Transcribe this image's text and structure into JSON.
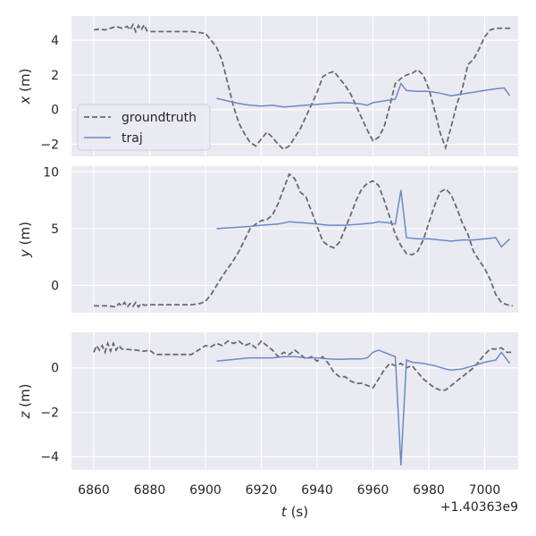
{
  "chart_data": {
    "type": "line",
    "xlabel": "t (s)",
    "x_offset_label": "+1.40363e9",
    "xlim": [
      6852,
      7012
    ],
    "xticks": [
      6860,
      6880,
      6900,
      6920,
      6940,
      6960,
      6980,
      7000
    ],
    "grid": true,
    "legend": {
      "placement": "inside-lower-left of top panel",
      "entries": [
        "groundtruth",
        "traj"
      ]
    },
    "colors": {
      "groundtruth": "#6b6b6b",
      "traj": "#6b8ac6",
      "panel_bg": "#eaeaf2",
      "grid": "#ffffff"
    },
    "panels": [
      {
        "ylabel": "x (m)",
        "ylim": [
          -2.7,
          5.4
        ],
        "yticks": [
          -2,
          0,
          2,
          4
        ],
        "series": [
          {
            "name": "groundtruth",
            "style": "dashed",
            "x": [
              6860,
              6862,
              6864,
              6866,
              6868,
              6870,
              6872,
              6873,
              6874,
              6875,
              6876,
              6877,
              6878,
              6879,
              6880,
              6885,
              6890,
              6895,
              6900,
              6902,
              6904,
              6906,
              6908,
              6910,
              6912,
              6914,
              6916,
              6918,
              6920,
              6922,
              6924,
              6926,
              6928,
              6930,
              6932,
              6934,
              6936,
              6938,
              6940,
              6942,
              6944,
              6946,
              6948,
              6950,
              6952,
              6954,
              6956,
              6958,
              6960,
              6962,
              6964,
              6966,
              6968,
              6970,
              6972,
              6974,
              6976,
              6978,
              6980,
              6982,
              6984,
              6986,
              6988,
              6990,
              6992,
              6994,
              6996,
              6998,
              7000,
              7002,
              7004,
              7006,
              7008,
              7010
            ],
            "y": [
              4.6,
              4.65,
              4.6,
              4.7,
              4.8,
              4.7,
              4.8,
              4.6,
              4.9,
              4.5,
              4.85,
              4.6,
              4.9,
              4.55,
              4.5,
              4.5,
              4.5,
              4.5,
              4.4,
              4.0,
              3.6,
              2.8,
              1.5,
              0.2,
              -0.8,
              -1.4,
              -1.9,
              -2.1,
              -1.7,
              -1.3,
              -1.6,
              -2.0,
              -2.3,
              -2.1,
              -1.6,
              -1.1,
              -0.4,
              0.3,
              1.0,
              1.9,
              2.1,
              2.2,
              1.8,
              1.4,
              0.9,
              0.2,
              -0.5,
              -1.2,
              -1.8,
              -1.6,
              -1.0,
              0.2,
              1.5,
              1.8,
              2.0,
              2.1,
              2.3,
              2.0,
              1.2,
              0.0,
              -1.3,
              -2.2,
              -1.0,
              0.3,
              1.2,
              2.6,
              2.9,
              3.5,
              4.2,
              4.6,
              4.7,
              4.7,
              4.7,
              4.7
            ]
          },
          {
            "name": "traj",
            "style": "solid",
            "x": [
              6904,
              6908,
              6912,
              6916,
              6920,
              6924,
              6926,
              6928,
              6932,
              6936,
              6940,
              6944,
              6948,
              6952,
              6956,
              6958,
              6960,
              6964,
              6968,
              6970,
              6972,
              6976,
              6980,
              6984,
              6988,
              6992,
              6996,
              7000,
              7004,
              7007,
              7009
            ],
            "y": [
              0.65,
              0.5,
              0.35,
              0.25,
              0.2,
              0.25,
              0.2,
              0.15,
              0.2,
              0.25,
              0.3,
              0.35,
              0.4,
              0.38,
              0.32,
              0.25,
              0.4,
              0.5,
              0.6,
              1.5,
              1.1,
              1.05,
              1.05,
              0.95,
              0.8,
              0.9,
              1.0,
              1.1,
              1.2,
              1.25,
              0.8
            ]
          }
        ]
      },
      {
        "ylabel": "y (m)",
        "ylim": [
          -2.4,
          10.5
        ],
        "yticks": [
          0,
          5,
          10
        ],
        "series": [
          {
            "name": "groundtruth",
            "style": "dashed",
            "x": [
              6860,
              6865,
              6868,
              6869,
              6870,
              6871,
              6872,
              6873,
              6874,
              6875,
              6876,
              6877,
              6878,
              6880,
              6885,
              6890,
              6895,
              6898,
              6900,
              6902,
              6904,
              6906,
              6908,
              6910,
              6912,
              6914,
              6916,
              6918,
              6920,
              6922,
              6924,
              6926,
              6928,
              6930,
              6932,
              6934,
              6936,
              6938,
              6940,
              6942,
              6944,
              6946,
              6948,
              6950,
              6952,
              6954,
              6956,
              6958,
              6960,
              6962,
              6964,
              6966,
              6968,
              6970,
              6972,
              6974,
              6976,
              6978,
              6980,
              6982,
              6984,
              6986,
              6988,
              6990,
              6992,
              6994,
              6996,
              6998,
              7000,
              7002,
              7004,
              7006,
              7008,
              7010
            ],
            "y": [
              -1.8,
              -1.8,
              -1.9,
              -1.6,
              -1.8,
              -1.5,
              -1.9,
              -1.6,
              -1.85,
              -1.5,
              -1.9,
              -1.6,
              -1.75,
              -1.7,
              -1.7,
              -1.7,
              -1.7,
              -1.6,
              -1.4,
              -0.8,
              0.0,
              0.8,
              1.5,
              2.2,
              3.0,
              4.0,
              5.0,
              5.4,
              5.7,
              5.8,
              6.2,
              7.2,
              8.5,
              9.8,
              9.4,
              8.2,
              7.8,
              6.5,
              5.2,
              3.9,
              3.5,
              3.3,
              3.8,
              5.0,
              6.2,
              7.5,
              8.5,
              9.0,
              9.2,
              8.8,
              7.5,
              6.0,
              4.5,
              3.5,
              2.8,
              2.7,
              3.0,
              4.0,
              5.5,
              7.0,
              8.2,
              8.5,
              8.0,
              6.8,
              5.5,
              4.5,
              3.0,
              2.2,
              1.5,
              0.5,
              -0.8,
              -1.5,
              -1.7,
              -1.8
            ]
          },
          {
            "name": "traj",
            "style": "solid",
            "x": [
              6904,
              6910,
              6916,
              6920,
              6926,
              6930,
              6936,
              6940,
              6944,
              6950,
              6956,
              6960,
              6962,
              6966,
              6968,
              6970,
              6972,
              6976,
              6980,
              6984,
              6988,
              6992,
              6996,
              7000,
              7004,
              7006,
              7009
            ],
            "y": [
              5.0,
              5.1,
              5.2,
              5.3,
              5.4,
              5.6,
              5.5,
              5.4,
              5.3,
              5.3,
              5.4,
              5.5,
              5.6,
              5.5,
              5.4,
              8.4,
              4.2,
              4.1,
              4.1,
              4.0,
              3.9,
              4.0,
              4.0,
              4.1,
              4.2,
              3.4,
              4.1
            ]
          }
        ]
      },
      {
        "ylabel": "z (m)",
        "ylim": [
          -4.6,
          1.6
        ],
        "yticks": [
          -4,
          -2,
          0
        ],
        "series": [
          {
            "name": "groundtruth",
            "style": "dashed",
            "x": [
              6860,
              6861,
              6862,
              6863,
              6864,
              6865,
              6866,
              6867,
              6868,
              6869,
              6870,
              6875,
              6878,
              6880,
              6882,
              6885,
              6890,
              6895,
              6900,
              6902,
              6904,
              6906,
              6908,
              6910,
              6912,
              6914,
              6916,
              6918,
              6920,
              6922,
              6924,
              6926,
              6928,
              6930,
              6932,
              6934,
              6936,
              6938,
              6940,
              6942,
              6944,
              6946,
              6948,
              6950,
              6952,
              6954,
              6956,
              6958,
              6960,
              6962,
              6964,
              6966,
              6968,
              6970,
              6972,
              6974,
              6976,
              6978,
              6980,
              6982,
              6984,
              6986,
              6988,
              6990,
              6992,
              6994,
              6996,
              6998,
              7000,
              7002,
              7004,
              7006,
              7008,
              7010
            ],
            "y": [
              0.7,
              1.0,
              0.8,
              1.0,
              0.7,
              1.1,
              0.75,
              1.1,
              0.8,
              1.0,
              0.85,
              0.8,
              0.75,
              0.8,
              0.6,
              0.6,
              0.6,
              0.6,
              1.0,
              0.95,
              1.1,
              1.0,
              1.2,
              1.1,
              1.2,
              1.0,
              1.1,
              0.9,
              1.2,
              1.0,
              0.8,
              0.5,
              0.7,
              0.6,
              0.8,
              0.6,
              0.4,
              0.5,
              0.3,
              0.5,
              0.2,
              -0.2,
              -0.4,
              -0.4,
              -0.6,
              -0.7,
              -0.7,
              -0.8,
              -0.9,
              -0.5,
              -0.1,
              0.2,
              0.1,
              0.2,
              0.0,
              0.1,
              -0.2,
              -0.5,
              -0.7,
              -0.9,
              -1.0,
              -1.0,
              -0.8,
              -0.6,
              -0.4,
              -0.2,
              0.0,
              0.3,
              0.6,
              0.85,
              0.85,
              0.9,
              0.7,
              0.7
            ]
          },
          {
            "name": "traj",
            "style": "solid",
            "x": [
              6904,
              6908,
              6912,
              6916,
              6920,
              6924,
              6928,
              6932,
              6936,
              6940,
              6944,
              6948,
              6952,
              6956,
              6958,
              6960,
              6962,
              6964,
              6968,
              6970,
              6972,
              6974,
              6978,
              6982,
              6986,
              6988,
              6992,
              6996,
              7000,
              7004,
              7006,
              7009
            ],
            "y": [
              0.3,
              0.35,
              0.4,
              0.45,
              0.45,
              0.45,
              0.5,
              0.5,
              0.45,
              0.45,
              0.4,
              0.38,
              0.4,
              0.4,
              0.45,
              0.7,
              0.8,
              0.7,
              0.5,
              -4.4,
              0.35,
              0.25,
              0.2,
              0.1,
              -0.05,
              -0.1,
              -0.05,
              0.1,
              0.25,
              0.35,
              0.7,
              0.2
            ]
          }
        ]
      }
    ]
  }
}
